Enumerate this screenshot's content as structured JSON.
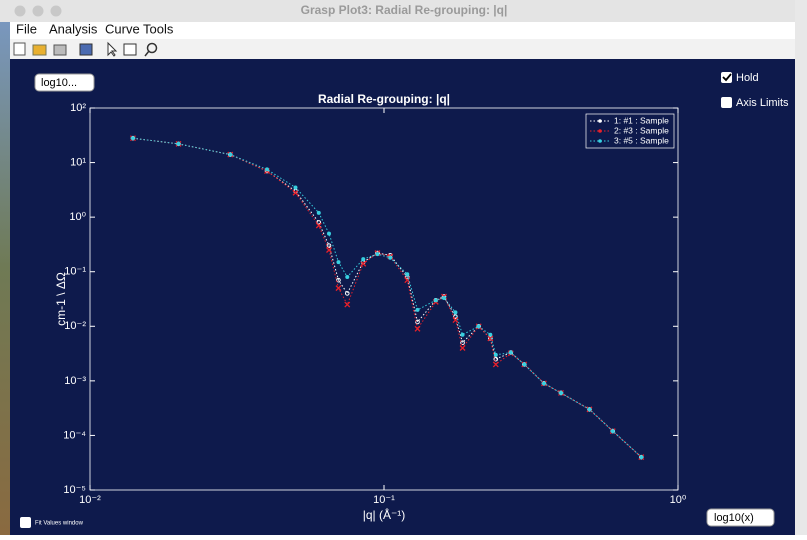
{
  "window": {
    "title": "Grasp Plot3:  Radial Re-grouping: |q|",
    "menu": [
      "File",
      "Analysis",
      "Curve Tools"
    ]
  },
  "controls": {
    "y_scale": "log10...",
    "hold": "Hold",
    "axis_limits": "Axis Limits",
    "fit_values": "Fit Values window",
    "x_scale": "log10(x)"
  },
  "chart_data": {
    "type": "line",
    "title": "Radial Re-grouping: |q|",
    "x_label": "|q| (Å⁻¹)",
    "y_label": "cm-1 \\ ΔΩ",
    "x": [
      0.014,
      0.02,
      0.03,
      0.04,
      0.05,
      0.06,
      0.065,
      0.07,
      0.075,
      0.085,
      0.095,
      0.105,
      0.12,
      0.13,
      0.15,
      0.16,
      0.175,
      0.185,
      0.21,
      0.23,
      0.24,
      0.27,
      0.3,
      0.35,
      0.4,
      0.5,
      0.6,
      0.75
    ],
    "series": [
      {
        "name": "1: #1 : Sample",
        "color": "#ffffff",
        "values": [
          28,
          22,
          14,
          7,
          3,
          0.8,
          0.3,
          0.07,
          0.04,
          0.15,
          0.22,
          0.2,
          0.08,
          0.012,
          0.03,
          0.035,
          0.015,
          0.005,
          0.01,
          0.006,
          0.0025,
          0.0033,
          0.002,
          0.0009,
          0.0006,
          0.0003,
          0.00012,
          4e-05
        ]
      },
      {
        "name": "2: #3 : Sample",
        "color": "#e8202a",
        "values": [
          28,
          22,
          14,
          7,
          2.8,
          0.7,
          0.25,
          0.05,
          0.025,
          0.14,
          0.22,
          0.19,
          0.07,
          0.009,
          0.028,
          0.035,
          0.013,
          0.004,
          0.01,
          0.006,
          0.002,
          0.0032,
          0.002,
          0.0009,
          0.0006,
          0.0003,
          0.00012,
          4e-05
        ]
      },
      {
        "name": "3: #5 : Sample",
        "color": "#38d0e0",
        "values": [
          28,
          22,
          14,
          7.5,
          3.5,
          1.2,
          0.5,
          0.15,
          0.08,
          0.17,
          0.21,
          0.18,
          0.09,
          0.02,
          0.03,
          0.033,
          0.018,
          0.007,
          0.01,
          0.007,
          0.003,
          0.0033,
          0.002,
          0.0009,
          0.0006,
          0.0003,
          0.00012,
          4e-05
        ]
      }
    ],
    "xlim": [
      0.01,
      1
    ],
    "ylim": [
      1e-05,
      100
    ],
    "xticks": [
      {
        "value": 0.01,
        "label": "10⁻²"
      },
      {
        "value": 0.1,
        "label": "10⁻¹"
      },
      {
        "value": 1,
        "label": "10⁰"
      }
    ],
    "yticks": [
      {
        "value": 1e-05,
        "label": "10⁻⁵"
      },
      {
        "value": 0.0001,
        "label": "10⁻⁴"
      },
      {
        "value": 0.001,
        "label": "10⁻³"
      },
      {
        "value": 0.01,
        "label": "10⁻²"
      },
      {
        "value": 0.1,
        "label": "10⁻¹"
      },
      {
        "value": 1,
        "label": "10⁰"
      },
      {
        "value": 10,
        "label": "10¹"
      },
      {
        "value": 100,
        "label": "10²"
      }
    ],
    "log_x": true,
    "log_y": true,
    "legend": "upper right"
  }
}
